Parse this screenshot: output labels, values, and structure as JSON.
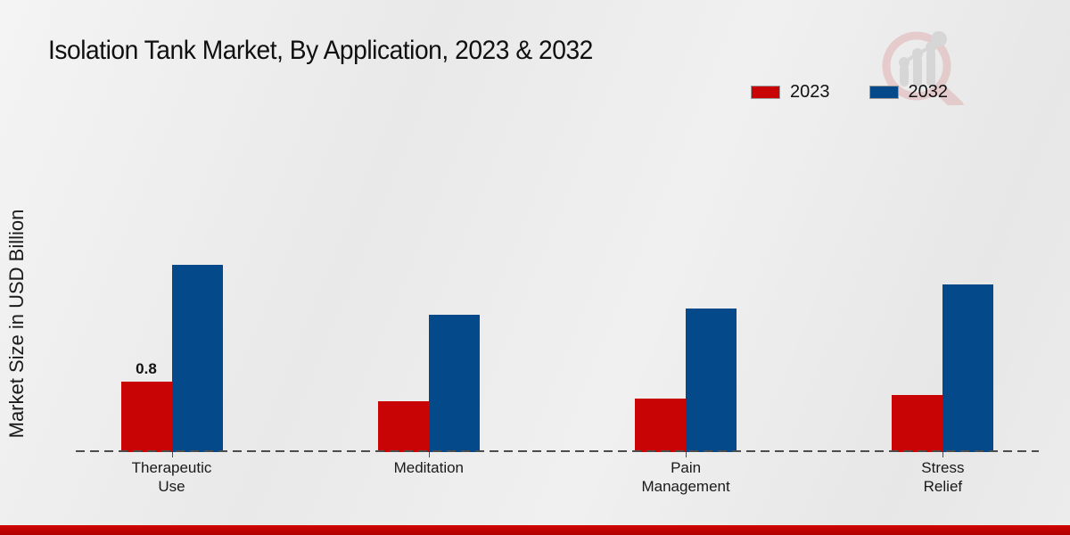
{
  "chart_data": {
    "type": "bar",
    "title": "Isolation Tank Market, By Application, 2023 & 2032",
    "xlabel": "",
    "ylabel": "Market Size in USD Billion",
    "categories": [
      "Therapeutic\nUse",
      "Meditation",
      "Pain\nManagement",
      "Stress\nRelief"
    ],
    "series": [
      {
        "name": "2023",
        "color": "#c80404",
        "values": [
          0.8,
          0.58,
          0.61,
          0.65
        ],
        "data_labels": [
          "0.8",
          "",
          "",
          ""
        ]
      },
      {
        "name": "2032",
        "color": "#04498a",
        "values": [
          2.13,
          1.56,
          1.63,
          1.9
        ],
        "data_labels": [
          "",
          "",
          "",
          ""
        ]
      }
    ],
    "ylim": [
      0,
      4.5
    ],
    "grid": false,
    "legend_position": "top-right",
    "baseline_style": "dashed"
  },
  "legend": {
    "items": [
      {
        "label": "2023",
        "color": "#c80404"
      },
      {
        "label": "2032",
        "color": "#04498a"
      }
    ]
  },
  "watermark": {
    "icon": "magnifier-bar-chart-logo"
  },
  "footer": {
    "band_color": "#bb0101"
  }
}
